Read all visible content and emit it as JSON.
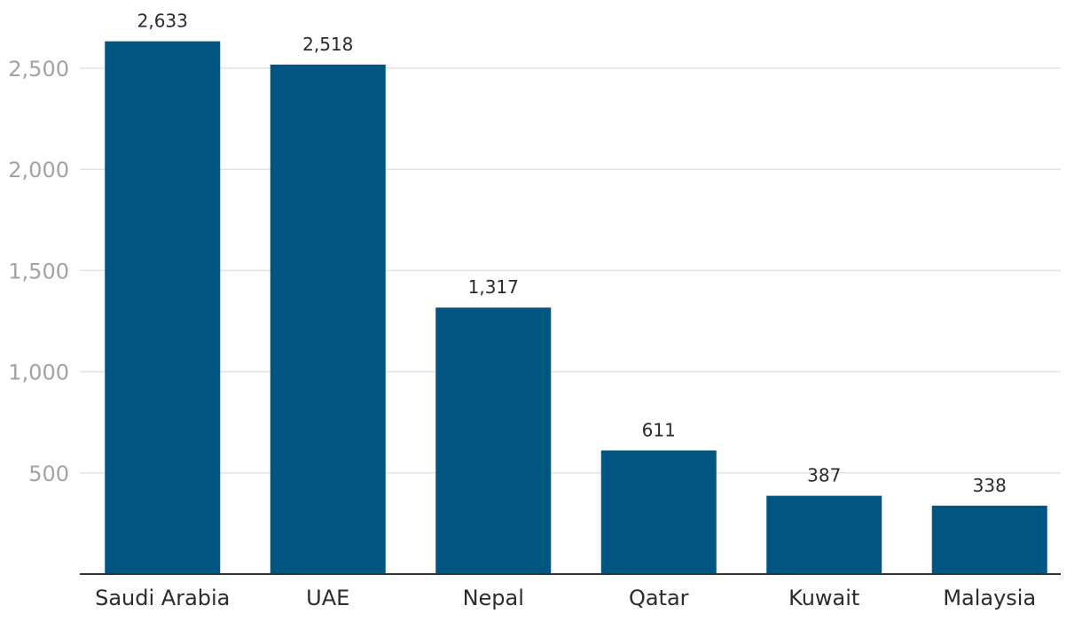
{
  "chart_data": {
    "type": "bar",
    "categories": [
      "Saudi Arabia",
      "UAE",
      "Nepal",
      "Qatar",
      "Kuwait",
      "Malaysia"
    ],
    "values": [
      2633,
      2518,
      1317,
      611,
      387,
      338
    ],
    "value_labels": [
      "2,633",
      "2,518",
      "1,317",
      "611",
      "387",
      "338"
    ],
    "y_ticks": [
      500,
      1000,
      1500,
      2000,
      2500
    ],
    "y_tick_labels": [
      "500",
      "1,000",
      "1,500",
      "2,000",
      "2,500"
    ],
    "ylim": [
      0,
      2800
    ],
    "grid": true,
    "bar_color": "#005581",
    "gridline_color": "#e2e2e2",
    "y_tick_color": "#a3a3a3",
    "text_color": "#2b2b2b"
  }
}
